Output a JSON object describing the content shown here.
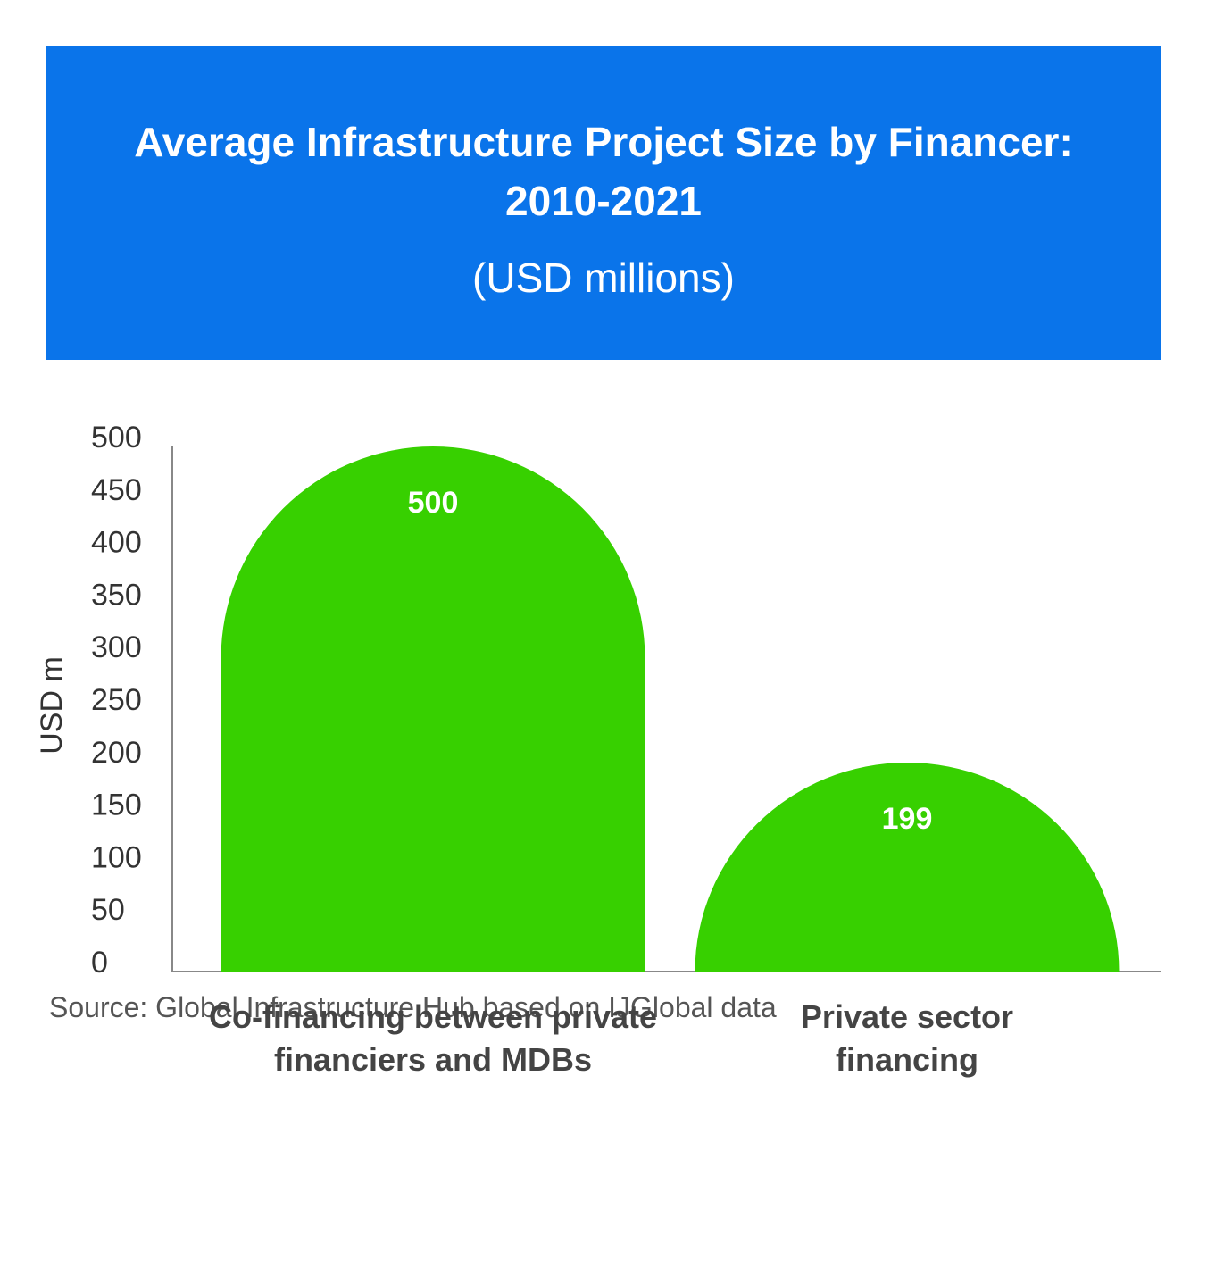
{
  "chart_data": {
    "type": "bar",
    "title": "Average Infrastructure Project Size by Financer: 2010-2021",
    "subtitle": "(USD millions)",
    "y_label": "USD m",
    "categories": [
      "Co-financing between private financiers and MDBs",
      "Private sector financing"
    ],
    "values": [
      500,
      199
    ],
    "color": "#37d000",
    "ylim": [
      0,
      500
    ],
    "yticks": [
      0,
      50,
      100,
      150,
      200,
      250,
      300,
      350,
      400,
      450,
      500
    ],
    "grid": false,
    "source": "Source: Global Infrastructure Hub based on IJGlobal data"
  }
}
